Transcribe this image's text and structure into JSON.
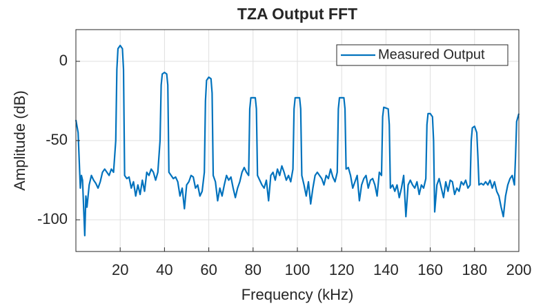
{
  "chart_data": {
    "type": "line",
    "title": "TZA Output FFT",
    "x_label": "Frequency (kHz)",
    "y_label": "Amplitude (dB)",
    "xlim": [
      0,
      200
    ],
    "ylim": [
      -120,
      20
    ],
    "xticks": [
      20,
      40,
      60,
      80,
      100,
      120,
      140,
      160,
      180,
      200
    ],
    "yticks": [
      -100,
      -50,
      0
    ],
    "grid": true,
    "legend": "northeast",
    "x": [
      0,
      1,
      2,
      2.5,
      3,
      4,
      4.5,
      5,
      6,
      7,
      8,
      9,
      10,
      11,
      12,
      13,
      14,
      15,
      16,
      17,
      18,
      18.5,
      19,
      20,
      21,
      21.5,
      22,
      23,
      24,
      25,
      26,
      27,
      28,
      29,
      30,
      31,
      32,
      33,
      34,
      35,
      36,
      37,
      38,
      38.5,
      39,
      40,
      41,
      41.5,
      42,
      43,
      44,
      45,
      46,
      47,
      48,
      49,
      50,
      51,
      52,
      53,
      54,
      55,
      56,
      57,
      58,
      58.5,
      59,
      60,
      61,
      61.5,
      62,
      63,
      64,
      65,
      66,
      67,
      68,
      69,
      70,
      71,
      72,
      73,
      74,
      75,
      76,
      77,
      78,
      78.5,
      79,
      81,
      81.5,
      82,
      83,
      84,
      85,
      86,
      87,
      88,
      89,
      90,
      91,
      92,
      93,
      94,
      95,
      96,
      97,
      98,
      98.5,
      99,
      101,
      101.5,
      102,
      103,
      104,
      105,
      106,
      107,
      108,
      109,
      110,
      111,
      112,
      113,
      114,
      115,
      116,
      117,
      118,
      118.5,
      119,
      121,
      121.5,
      122,
      123,
      124,
      125,
      126,
      127,
      128,
      129,
      130,
      131,
      132,
      133,
      134,
      135,
      136,
      137,
      138,
      138.5,
      139,
      141,
      141.5,
      142,
      143,
      144,
      145,
      146,
      147,
      148,
      149,
      150,
      151,
      152,
      153,
      154,
      155,
      156,
      157,
      158,
      158.5,
      159,
      160,
      161,
      161.5,
      162,
      163,
      164,
      165,
      166,
      167,
      168,
      169,
      170,
      171,
      172,
      173,
      174,
      175,
      176,
      177,
      178,
      178.5,
      179,
      180,
      181,
      181.5,
      182,
      183,
      184,
      185,
      186,
      187,
      188,
      189,
      190,
      191,
      192,
      193,
      194,
      195,
      196,
      197,
      198,
      198.5,
      199,
      200
    ],
    "series": [
      {
        "name": "Measured Output",
        "color": "#0072bd",
        "values": [
          -37,
          -45,
          -80,
          -72,
          -75,
          -110,
          -85,
          -92,
          -78,
          -72,
          -75,
          -77,
          -80,
          -76,
          -70,
          -68,
          -70,
          -72,
          -68,
          -70,
          -50,
          -5,
          8,
          10,
          8,
          -5,
          -72,
          -74,
          -73,
          -80,
          -76,
          -85,
          -78,
          -84,
          -75,
          -82,
          -70,
          -72,
          -68,
          -70,
          -75,
          -70,
          -50,
          -15,
          -8,
          -7,
          -8,
          -15,
          -70,
          -72,
          -74,
          -73,
          -76,
          -85,
          -80,
          -93,
          -78,
          -76,
          -72,
          -73,
          -80,
          -78,
          -85,
          -82,
          -70,
          -25,
          -12,
          -10,
          -11,
          -20,
          -72,
          -76,
          -88,
          -80,
          -85,
          -78,
          -72,
          -75,
          -73,
          -80,
          -86,
          -80,
          -76,
          -70,
          -67,
          -70,
          -72,
          -30,
          -23,
          -23,
          -30,
          -72,
          -75,
          -78,
          -80,
          -75,
          -88,
          -72,
          -70,
          -75,
          -68,
          -72,
          -66,
          -70,
          -75,
          -72,
          -76,
          -68,
          -30,
          -23,
          -23,
          -30,
          -72,
          -78,
          -85,
          -76,
          -90,
          -80,
          -72,
          -70,
          -72,
          -74,
          -78,
          -72,
          -74,
          -68,
          -73,
          -76,
          -70,
          -30,
          -23,
          -23,
          -30,
          -68,
          -67,
          -72,
          -80,
          -76,
          -72,
          -88,
          -78,
          -74,
          -72,
          -80,
          -75,
          -74,
          -78,
          -85,
          -70,
          -72,
          -35,
          -29,
          -30,
          -40,
          -80,
          -78,
          -82,
          -78,
          -86,
          -80,
          -72,
          -98,
          -78,
          -75,
          -78,
          -80,
          -76,
          -84,
          -78,
          -80,
          -74,
          -40,
          -33,
          -33,
          -35,
          -50,
          -95,
          -78,
          -74,
          -80,
          -86,
          -76,
          -82,
          -75,
          -76,
          -84,
          -80,
          -82,
          -76,
          -78,
          -75,
          -80,
          -78,
          -50,
          -42,
          -41,
          -45,
          -60,
          -78,
          -77,
          -78,
          -76,
          -78,
          -75,
          -80,
          -76,
          -82,
          -85,
          -92,
          -98,
          -85,
          -78,
          -74,
          -72,
          -78,
          -60,
          -38,
          -33
        ]
      }
    ]
  }
}
